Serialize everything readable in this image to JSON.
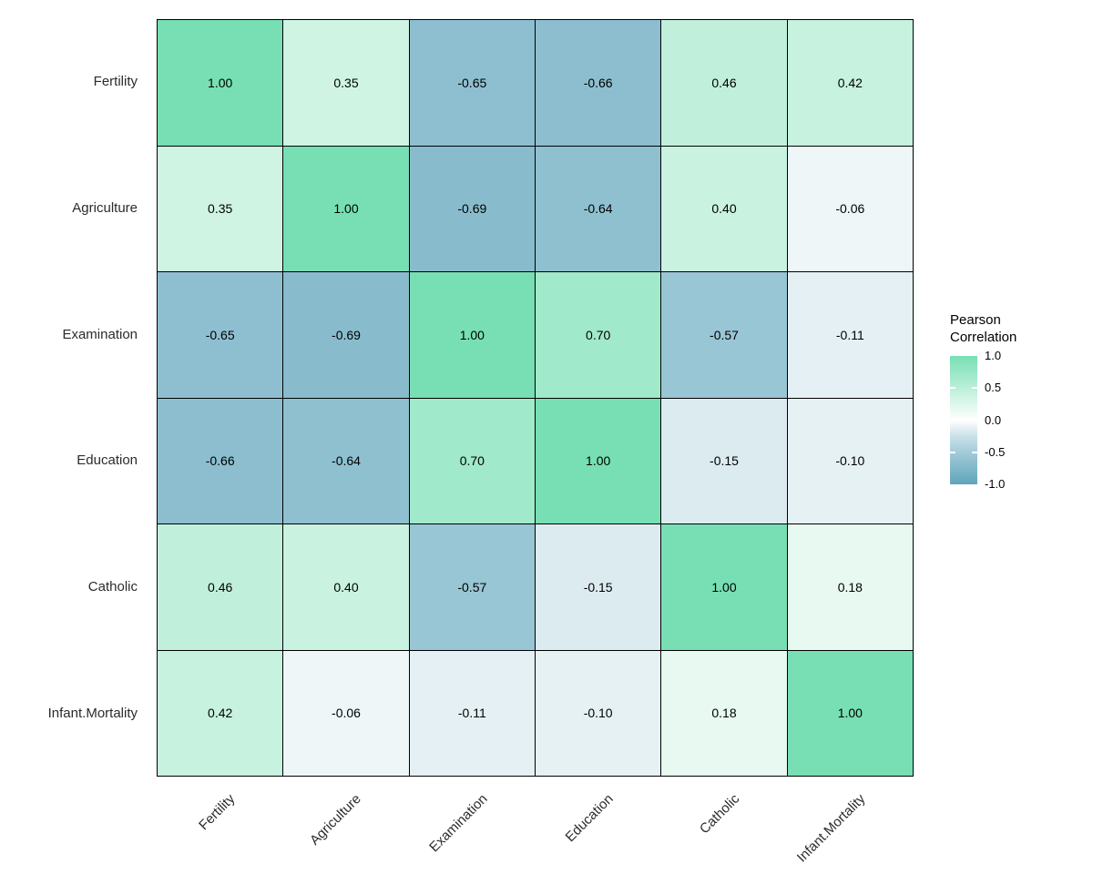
{
  "chart_data": {
    "type": "heatmap",
    "title": "",
    "variables": [
      "Fertility",
      "Agriculture",
      "Examination",
      "Education",
      "Catholic",
      "Infant.Mortality"
    ],
    "rows_top_to_bottom": [
      "Fertility",
      "Agriculture",
      "Examination",
      "Education",
      "Catholic",
      "Infant.Mortality"
    ],
    "columns_left_to_right": [
      "Fertility",
      "Agriculture",
      "Examination",
      "Education",
      "Catholic",
      "Infant.Mortality"
    ],
    "matrix": [
      [
        1.0,
        0.35,
        -0.65,
        -0.66,
        0.46,
        0.42
      ],
      [
        0.35,
        1.0,
        -0.69,
        -0.64,
        0.4,
        -0.06
      ],
      [
        -0.65,
        -0.69,
        1.0,
        0.7,
        -0.57,
        -0.11
      ],
      [
        -0.66,
        -0.64,
        0.7,
        1.0,
        -0.15,
        -0.1
      ],
      [
        0.46,
        0.4,
        -0.57,
        -0.15,
        1.0,
        0.18
      ],
      [
        0.42,
        -0.06,
        -0.11,
        -0.1,
        0.18,
        1.0
      ]
    ],
    "value_decimals": 2,
    "legend": {
      "title_lines": [
        "Pearson",
        "Correlation"
      ],
      "tick_labels": [
        "1.0",
        "0.5",
        "0.0",
        "-0.5",
        "-1.0"
      ],
      "tick_values": [
        1.0,
        0.5,
        0.0,
        -0.5,
        -1.0
      ],
      "range": [
        -1.0,
        1.0
      ],
      "position": "right"
    },
    "colors": {
      "high": "#77DFB3",
      "mid": "#FFFFFF",
      "low": "#5FA5BC",
      "cell_border": "#000000",
      "background": "#FFFFFF",
      "value_text": "#000000",
      "axis_text": "#2B2B2B"
    },
    "grid_lines": "black 1px between tiles",
    "x_axis_label_rotation_deg": 45
  }
}
